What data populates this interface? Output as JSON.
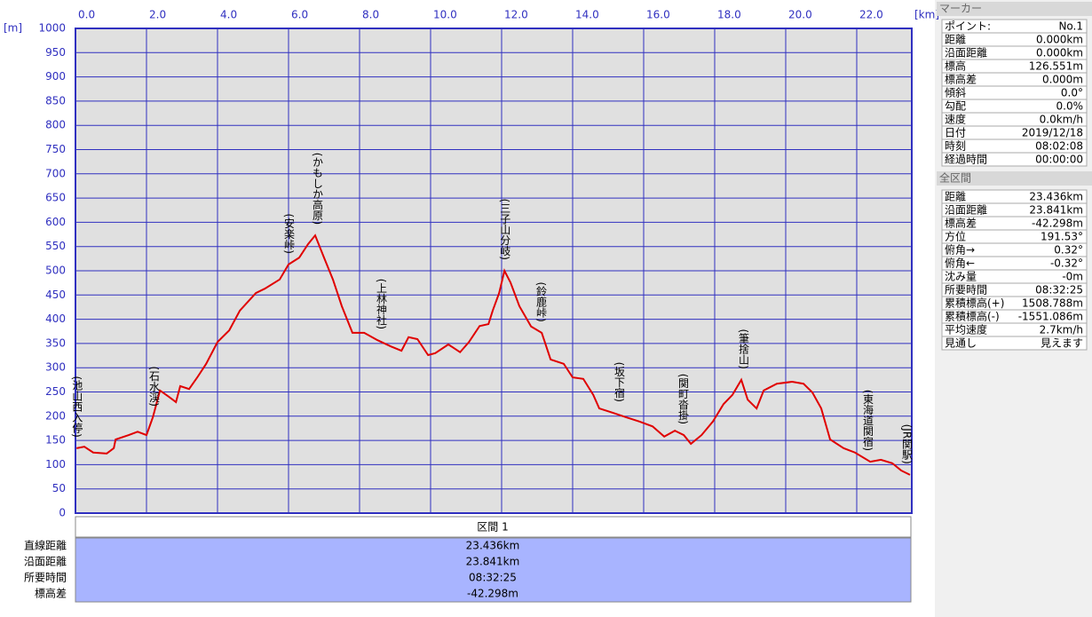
{
  "chart_data": {
    "type": "line",
    "ylabel": "[m]",
    "xlabel": "[km]",
    "color": "#e00000",
    "grid": true,
    "xlim": [
      0,
      23.55
    ],
    "ylim": [
      0,
      1000
    ],
    "xticks": [
      {
        "value": 0,
        "label": "0.0"
      },
      {
        "value": 2,
        "label": "2.0"
      },
      {
        "value": 4,
        "label": "4.0"
      },
      {
        "value": 6,
        "label": "6.0"
      },
      {
        "value": 8,
        "label": "8.0"
      },
      {
        "value": 10,
        "label": "10.0"
      },
      {
        "value": 12,
        "label": "12.0"
      },
      {
        "value": 14,
        "label": "14.0"
      },
      {
        "value": 16,
        "label": "16.0"
      },
      {
        "value": 18,
        "label": "18.0"
      },
      {
        "value": 20,
        "label": "20.0"
      },
      {
        "value": 22,
        "label": "22.0"
      }
    ],
    "yticks": [
      0,
      50,
      100,
      150,
      200,
      250,
      300,
      350,
      400,
      450,
      500,
      550,
      600,
      650,
      700,
      750,
      800,
      850,
      900,
      950,
      1000
    ],
    "x": [
      0.03,
      0.25,
      0.5,
      0.88,
      1.08,
      1.13,
      1.5,
      1.75,
      2.0,
      2.18,
      2.38,
      2.63,
      2.83,
      2.95,
      3.2,
      3.43,
      3.68,
      4.0,
      4.33,
      4.63,
      5.08,
      5.33,
      5.75,
      6.0,
      6.3,
      6.55,
      6.75,
      7.0,
      7.25,
      7.5,
      7.8,
      8.13,
      8.5,
      8.88,
      9.18,
      9.38,
      9.63,
      9.93,
      10.13,
      10.5,
      10.83,
      11.08,
      11.38,
      11.63,
      11.75,
      11.93,
      12.08,
      12.25,
      12.5,
      12.83,
      13.13,
      13.38,
      13.75,
      14.0,
      14.3,
      14.58,
      14.75,
      15.13,
      15.5,
      15.88,
      16.25,
      16.58,
      16.88,
      17.13,
      17.33,
      17.63,
      17.95,
      18.25,
      18.5,
      18.75,
      18.93,
      19.18,
      19.38,
      19.75,
      20.18,
      20.5,
      20.75,
      21.0,
      21.25,
      21.63,
      21.95,
      22.38,
      22.68,
      23.0,
      23.25,
      23.5
    ],
    "values": [
      134,
      137,
      125,
      123,
      134,
      152,
      161,
      168,
      161,
      198,
      253,
      240,
      229,
      262,
      256,
      280,
      308,
      353,
      377,
      418,
      454,
      463,
      482,
      513,
      527,
      555,
      573,
      527,
      482,
      427,
      372,
      372,
      357,
      344,
      335,
      363,
      359,
      326,
      330,
      348,
      332,
      353,
      386,
      390,
      418,
      454,
      500,
      476,
      427,
      385,
      372,
      317,
      308,
      280,
      277,
      244,
      216,
      207,
      198,
      189,
      179,
      158,
      170,
      161,
      143,
      161,
      189,
      225,
      244,
      275,
      234,
      216,
      253,
      267,
      271,
      267,
      249,
      216,
      152,
      134,
      125,
      106,
      110,
      103,
      88,
      79
    ],
    "annotations": [
      {
        "text": "(池山西入停)",
        "x": 0.03
      },
      {
        "text": "(石水渓)",
        "x": 2.2
      },
      {
        "text": "(安楽峠)",
        "x": 6.0
      },
      {
        "text": "(かもしか高原)",
        "x": 6.8
      },
      {
        "text": "(上林神社)",
        "x": 8.6
      },
      {
        "text": "(三子山分岐)",
        "x": 12.08
      },
      {
        "text": "(鈴鹿峠)",
        "x": 13.1
      },
      {
        "text": "(坂下宿)",
        "x": 15.3
      },
      {
        "text": "(関町沓掛)",
        "x": 17.1
      },
      {
        "text": "(筆捨山)",
        "x": 18.8
      },
      {
        "text": "(東海道関宿)",
        "x": 22.3
      },
      {
        "text": "(JR関駅)",
        "x": 23.4
      }
    ]
  },
  "section_table": {
    "header": "区間 1",
    "rows": [
      [
        "直線距離",
        "23.436km"
      ],
      [
        "沿面距離",
        "23.841km"
      ],
      [
        "所要時間",
        "08:32:25"
      ],
      [
        "標高差",
        "-42.298m"
      ]
    ]
  },
  "marker_panel": {
    "title": "マーカー",
    "rows": [
      [
        "ポイント:",
        "No.1"
      ],
      [
        "距離",
        "0.000km"
      ],
      [
        "沿面距離",
        "0.000km"
      ],
      [
        "標高",
        "126.551m"
      ],
      [
        "標高差",
        "0.000m"
      ],
      [
        "傾斜",
        "0.0°"
      ],
      [
        "勾配",
        "0.0%"
      ],
      [
        "速度",
        "0.0km/h"
      ],
      [
        "日付",
        "2019/12/18"
      ],
      [
        "時刻",
        "08:02:08"
      ],
      [
        "経過時間",
        "00:00:00"
      ]
    ]
  },
  "total_panel": {
    "title": "全区間",
    "rows": [
      [
        "距離",
        "23.436km"
      ],
      [
        "沿面距離",
        "23.841km"
      ],
      [
        "標高差",
        "-42.298m"
      ],
      [
        "方位",
        "191.53°"
      ],
      [
        "俯角→",
        "0.32°"
      ],
      [
        "俯角←",
        "-0.32°"
      ],
      [
        "沈み量",
        "-0m"
      ],
      [
        "所要時間",
        "08:32:25"
      ],
      [
        "累積標高(+)",
        "1508.788m"
      ],
      [
        "累積標高(-)",
        "-1551.086m"
      ],
      [
        "平均速度",
        "2.7km/h"
      ],
      [
        "見通し",
        "見えます"
      ]
    ]
  }
}
